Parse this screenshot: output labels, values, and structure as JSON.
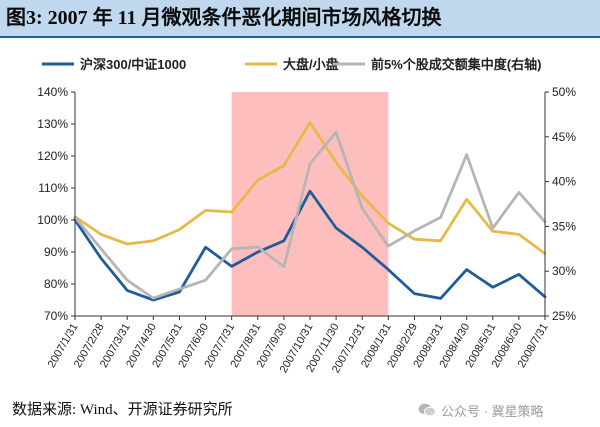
{
  "figure": {
    "title": "图3:  2007 年 11 月微观条件恶化期间市场风格切换",
    "source_note": "数据来源:  Wind、开源证券研究所",
    "watermark": "公众号 · 冀星策略"
  },
  "chart_data": {
    "type": "line",
    "categories": [
      "2007/1/31",
      "2007/2/28",
      "2007/3/31",
      "2007/4/30",
      "2007/5/31",
      "2007/6/30",
      "2007/7/31",
      "2007/8/31",
      "2007/9/30",
      "2007/10/31",
      "2007/11/30",
      "2007/12/31",
      "2008/1/31",
      "2008/2/29",
      "2008/3/31",
      "2008/4/30",
      "2008/5/31",
      "2008/6/30",
      "2008/7/31"
    ],
    "highlight": {
      "from": "2007/7/31",
      "to": "2008/1/31",
      "color": "#FFBEBE"
    },
    "left_axis": {
      "min": 0.7,
      "max": 1.4,
      "ticks": [
        "70%",
        "80%",
        "90%",
        "100%",
        "110%",
        "120%",
        "130%",
        "140%"
      ]
    },
    "right_axis": {
      "min": 0.25,
      "max": 0.5,
      "ticks": [
        "25%",
        "30%",
        "35%",
        "40%",
        "45%",
        "50%"
      ]
    },
    "legend_position": "top",
    "series": [
      {
        "name": "沪深300/中证1000",
        "axis": "left",
        "color": "#1F5C99",
        "values": [
          1.0,
          0.88,
          0.78,
          0.75,
          0.775,
          0.915,
          0.855,
          0.9,
          0.935,
          1.09,
          0.975,
          0.915,
          0.845,
          0.77,
          0.755,
          0.845,
          0.79,
          0.83,
          0.76
        ]
      },
      {
        "name": "大盘/小盘",
        "axis": "left",
        "color": "#E8B84B",
        "values": [
          1.01,
          0.955,
          0.925,
          0.935,
          0.97,
          1.03,
          1.025,
          1.125,
          1.17,
          1.305,
          1.18,
          1.075,
          0.99,
          0.94,
          0.935,
          1.065,
          0.965,
          0.955,
          0.895
        ]
      },
      {
        "name": "前5%个股成交额集中度(右轴)",
        "axis": "right",
        "color": "#B5B5B5",
        "values": [
          0.36,
          0.325,
          0.29,
          0.27,
          0.28,
          0.29,
          0.325,
          0.327,
          0.305,
          0.42,
          0.455,
          0.37,
          0.328,
          0.345,
          0.36,
          0.43,
          0.348,
          0.388,
          0.355
        ]
      }
    ]
  }
}
